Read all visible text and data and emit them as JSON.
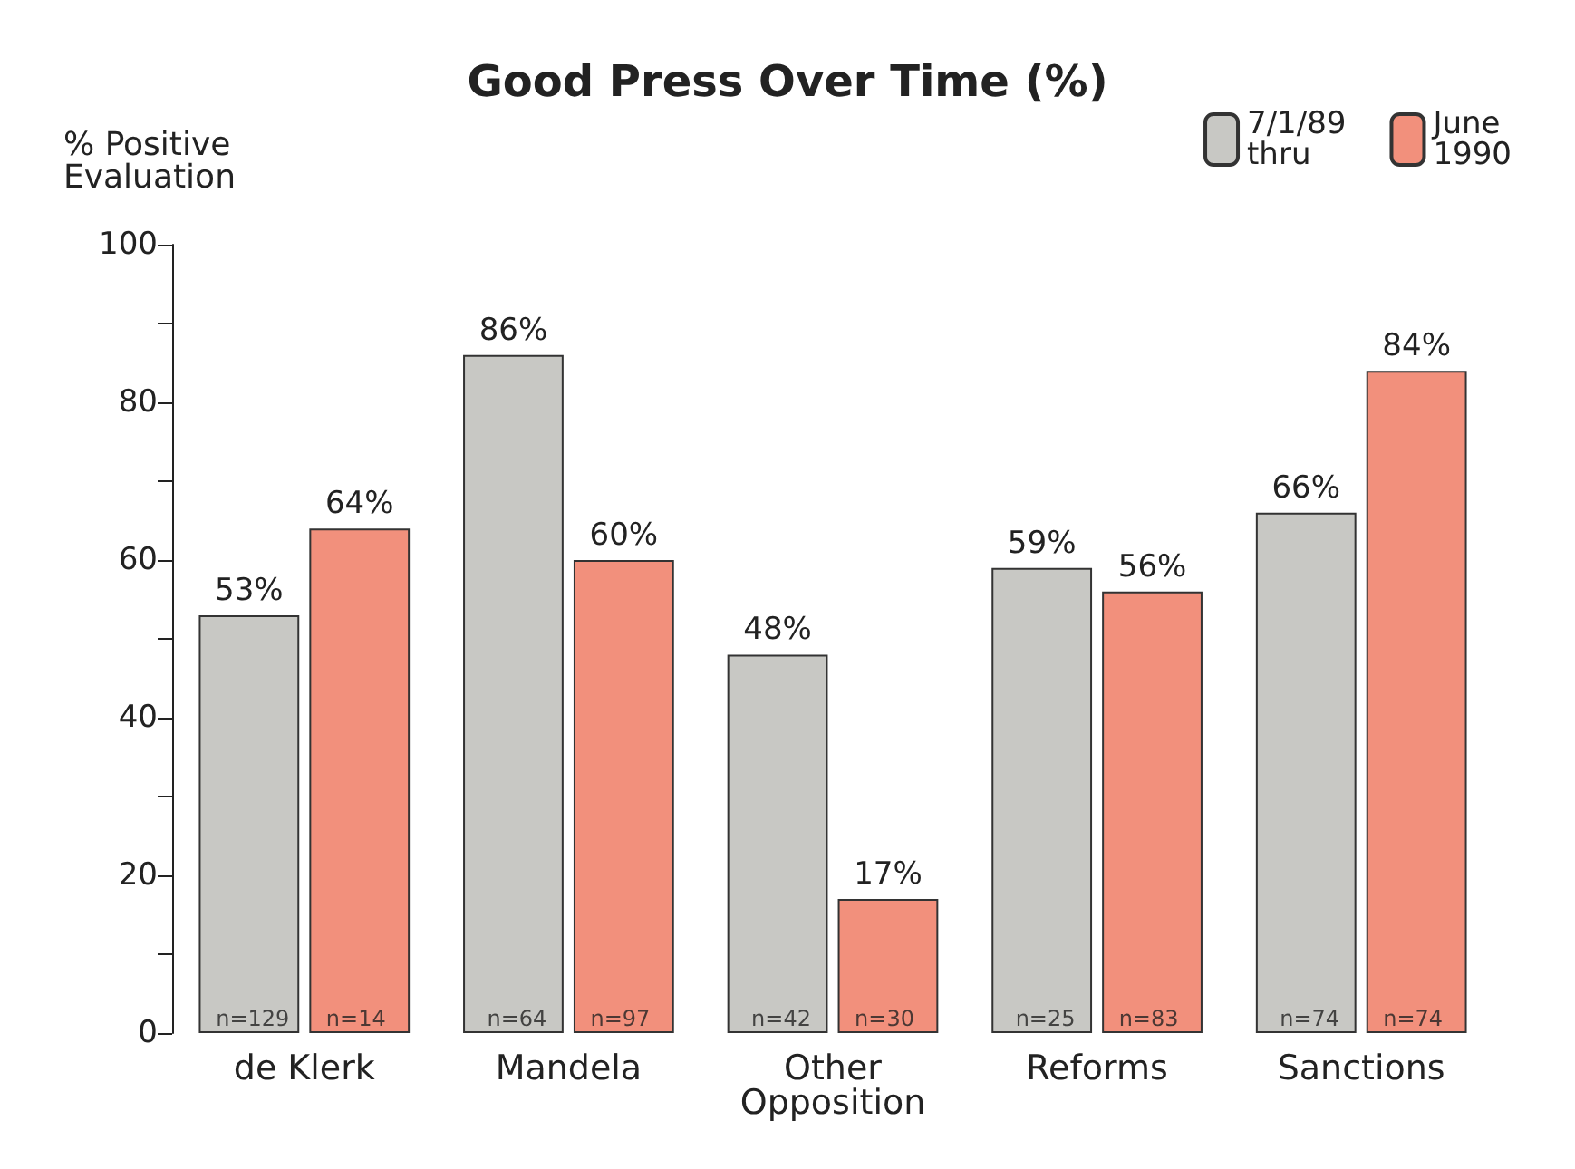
{
  "chart_data": {
    "type": "bar",
    "title": "Good Press Over Time (%)",
    "ylabel": "% Positive\nEvaluation",
    "categories": [
      "de Klerk",
      "Mandela",
      "Other\nOpposition",
      "Reforms",
      "Sanctions"
    ],
    "series": [
      {
        "name": "7/1/89\nthru",
        "color": "#c8c8c4",
        "values": [
          53,
          86,
          48,
          59,
          66
        ],
        "value_labels": [
          "53%",
          "86%",
          "48%",
          "59%",
          "66%"
        ]
      },
      {
        "name": "June\n1990",
        "color": "#f2907c",
        "values": [
          64,
          60,
          17,
          56,
          84
        ],
        "value_labels": [
          "64%",
          "60%",
          "17%",
          "56%",
          "84%"
        ]
      }
    ],
    "ylim": [
      0,
      100
    ],
    "yticks": [
      0,
      {
        "value": 10,
        "label": null
      },
      20,
      {
        "value": 30,
        "label": null
      },
      40,
      {
        "value": 50,
        "label": null
      },
      60,
      {
        "value": 70,
        "label": null
      },
      80,
      {
        "value": 90,
        "label": null
      },
      100
    ],
    "grid": false,
    "legend": "top right",
    "annotations": [
      {
        "text": "n=129",
        "x": "de Klerk",
        "y": 0
      },
      {
        "text": "n=14",
        "x": "de Klerk",
        "y": 0
      },
      {
        "text": "n=64",
        "x": "Mandela",
        "y": 0
      },
      {
        "text": "n=97",
        "x": "Mandela",
        "y": 0
      },
      {
        "text": "n=42",
        "x": "Other\nOpposition",
        "y": 0
      },
      {
        "text": "n=30",
        "x": "Other\nOpposition",
        "y": 0
      },
      {
        "text": "n=25",
        "x": "Reforms",
        "y": 0
      },
      {
        "text": "n=83",
        "x": "Reforms",
        "y": 0
      },
      {
        "text": "n=74",
        "x": "Sanctions",
        "y": 0
      },
      {
        "text": "n=74",
        "x": "Sanctions",
        "y": 0
      }
    ]
  }
}
